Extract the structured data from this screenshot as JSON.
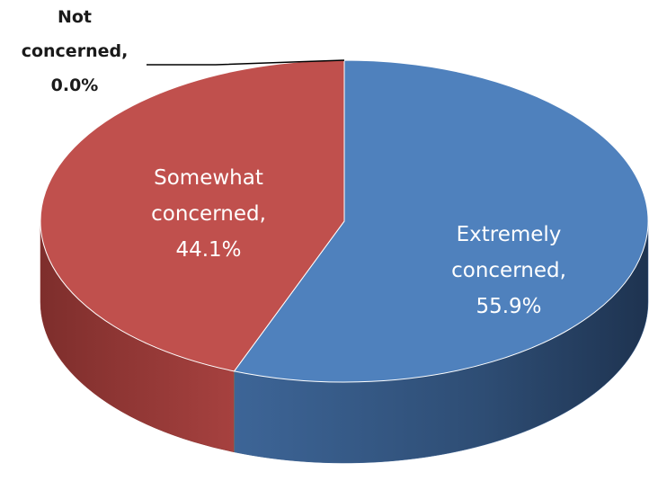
{
  "chart_data": {
    "type": "pie",
    "style": "3d",
    "slices": [
      {
        "label": "Extremely concerned",
        "value": 55.9,
        "value_text": "55.9%",
        "color": "#4F81BD",
        "side_color": "#3A5F8F",
        "label_lines": [
          "Extremely",
          "concerned,",
          "55.9%"
        ]
      },
      {
        "label": "Somewhat concerned",
        "value": 44.1,
        "value_text": "44.1%",
        "color": "#C0504D",
        "side_color": "#8E3533",
        "label_lines": [
          "Somewhat",
          "concerned,",
          "44.1%"
        ]
      },
      {
        "label": "Not concerned",
        "value": 0.0,
        "value_text": "0.0%",
        "color": "#9BBB59",
        "side_color": "#6E8A3C",
        "label_lines": [
          "Not",
          "concerned,",
          "0.0%"
        ]
      }
    ]
  }
}
